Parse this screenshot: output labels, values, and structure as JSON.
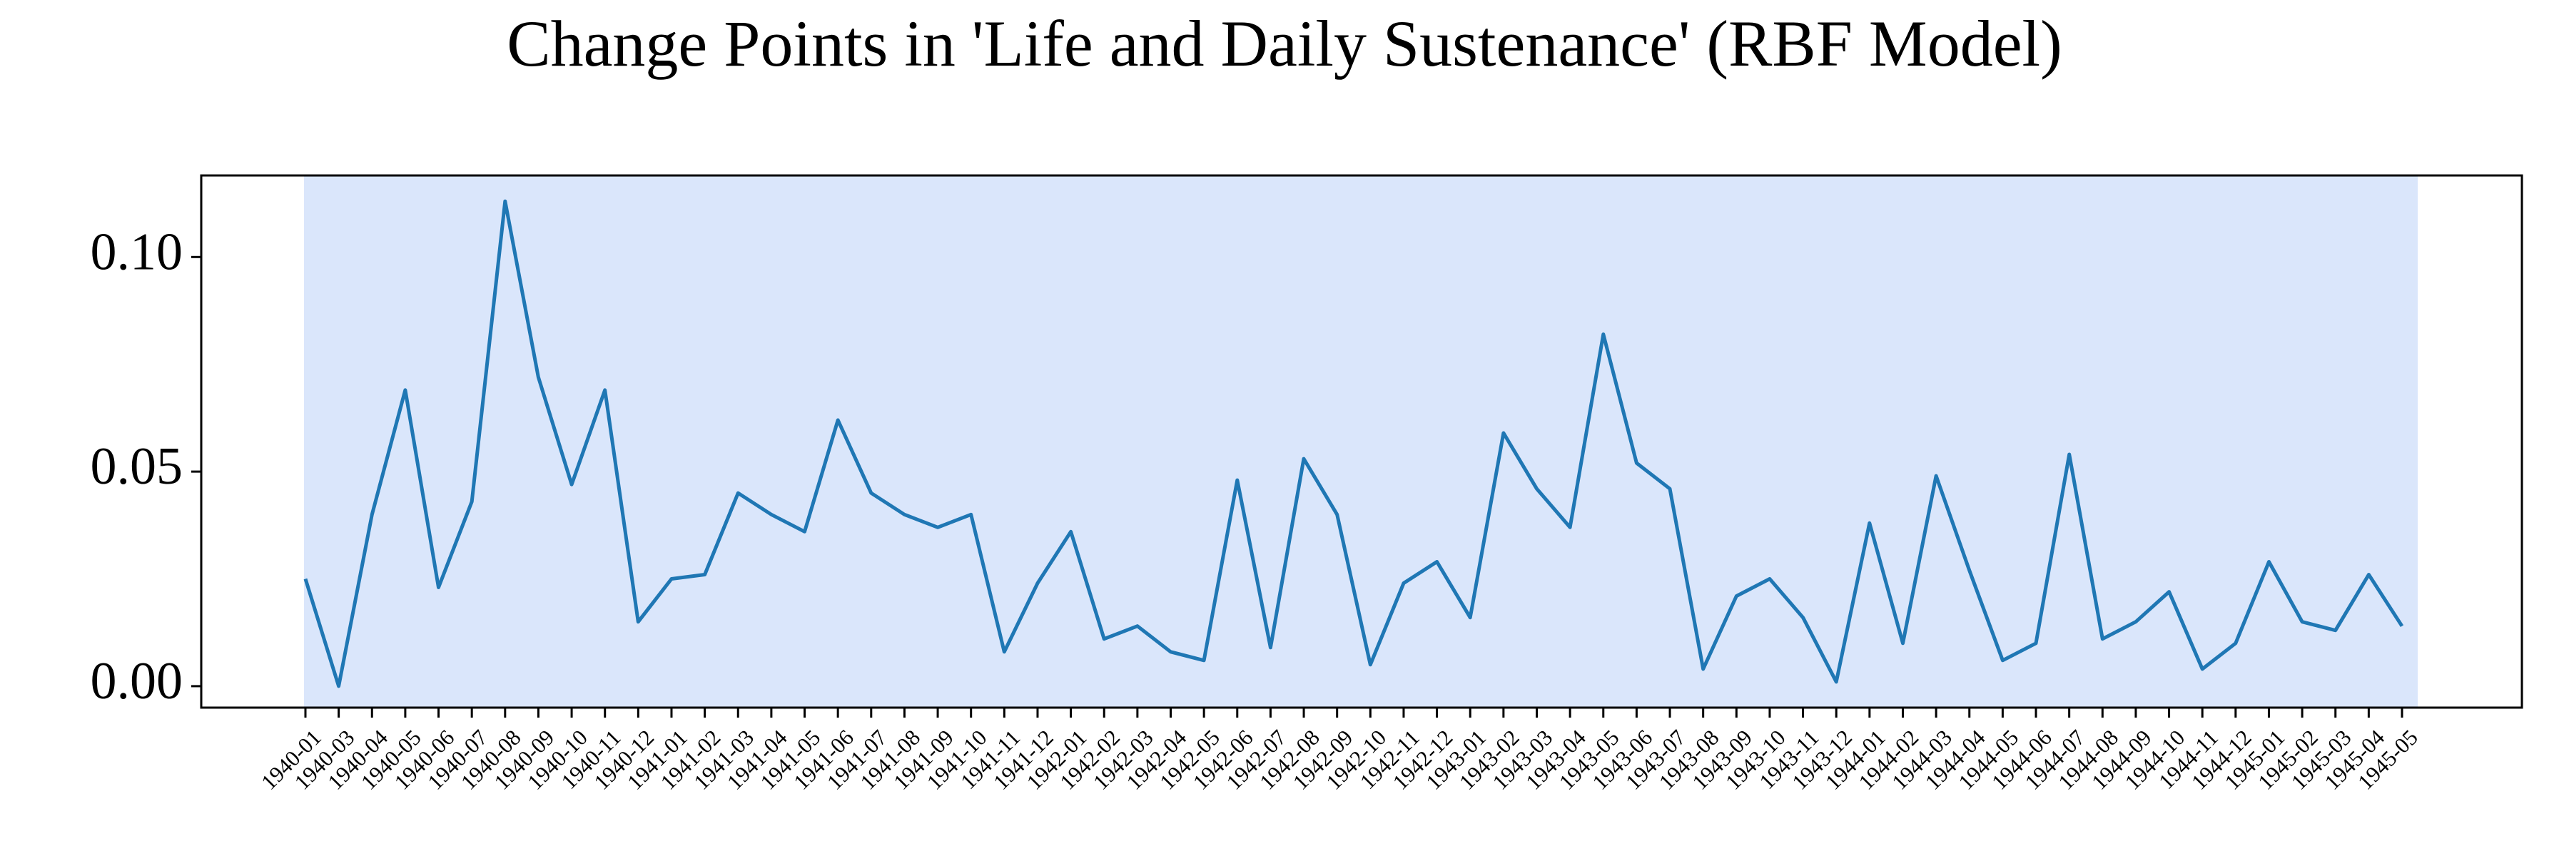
{
  "chart_data": {
    "type": "line",
    "title": "Change Points in 'Life and Daily Sustenance' (RBF Model)",
    "xlabel": "",
    "ylabel": "",
    "ylim": [
      -0.005,
      0.119
    ],
    "grid": false,
    "legend": "none",
    "y_ticks": [
      "0.00",
      "0.05",
      "0.10"
    ],
    "y_tick_values": [
      0.0,
      0.05,
      0.1
    ],
    "colors": {
      "line": "#1f77b4",
      "segment_fill": "#dae6fb",
      "axes": "#000000"
    },
    "segments": [
      {
        "start": "1940-01",
        "end": "1945-05"
      }
    ],
    "x": [
      "1940-01",
      "1940-03",
      "1940-04",
      "1940-05",
      "1940-06",
      "1940-07",
      "1940-08",
      "1940-09",
      "1940-10",
      "1940-11",
      "1940-12",
      "1941-01",
      "1941-02",
      "1941-03",
      "1941-04",
      "1941-05",
      "1941-06",
      "1941-07",
      "1941-08",
      "1941-09",
      "1941-10",
      "1941-11",
      "1941-12",
      "1942-01",
      "1942-02",
      "1942-03",
      "1942-04",
      "1942-05",
      "1942-06",
      "1942-07",
      "1942-08",
      "1942-09",
      "1942-10",
      "1942-11",
      "1942-12",
      "1943-01",
      "1943-02",
      "1943-03",
      "1943-04",
      "1943-05",
      "1943-06",
      "1943-07",
      "1943-08",
      "1943-09",
      "1943-10",
      "1943-11",
      "1943-12",
      "1944-01",
      "1944-02",
      "1944-03",
      "1944-04",
      "1944-05",
      "1944-06",
      "1944-07",
      "1944-08",
      "1944-09",
      "1944-10",
      "1944-11",
      "1944-12",
      "1945-01",
      "1945-02",
      "1945-03",
      "1945-04",
      "1945-05"
    ],
    "values": [
      0.025,
      0.0,
      0.04,
      0.069,
      0.023,
      0.043,
      0.113,
      0.072,
      0.047,
      0.069,
      0.015,
      0.025,
      0.026,
      0.045,
      0.04,
      0.036,
      0.062,
      0.045,
      0.04,
      0.037,
      0.04,
      0.008,
      0.024,
      0.036,
      0.011,
      0.014,
      0.008,
      0.006,
      0.048,
      0.009,
      0.053,
      0.04,
      0.005,
      0.024,
      0.029,
      0.016,
      0.059,
      0.046,
      0.037,
      0.082,
      0.052,
      0.046,
      0.004,
      0.021,
      0.025,
      0.016,
      0.001,
      0.038,
      0.01,
      0.049,
      0.027,
      0.006,
      0.01,
      0.054,
      0.011,
      0.015,
      0.022,
      0.004,
      0.01,
      0.029,
      0.015,
      0.013,
      0.026,
      0.014
    ]
  }
}
